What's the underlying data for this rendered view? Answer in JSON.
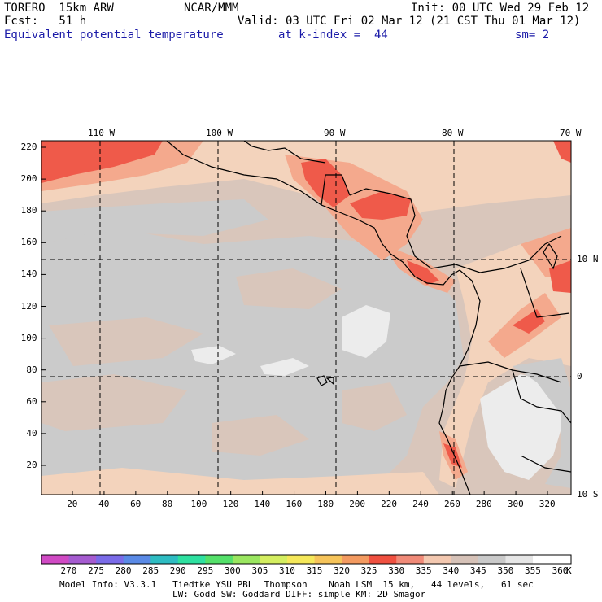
{
  "header": {
    "model": "TORERO  15km ARW",
    "org": "NCAR/MMM",
    "init": "Init: 00 UTC Wed 29 Feb 12",
    "fcst": "Fcst:   51 h",
    "valid": "Valid: 03 UTC Fri 02 Mar 12 (21 CST Thu 01 Mar 12)",
    "field": "Equivalent potential temperature",
    "level": "at k-index =  44",
    "smooth": "sm= 2"
  },
  "map": {
    "lon_labels": [
      "110 W",
      "100 W",
      "90 W",
      "80 W",
      "70 W"
    ],
    "lat_labels": [
      "10 N",
      "0",
      "10 S"
    ],
    "x_ticks": [
      "20",
      "40",
      "60",
      "80",
      "100",
      "120",
      "140",
      "160",
      "180",
      "200",
      "220",
      "240",
      "260",
      "280",
      "300",
      "320"
    ],
    "y_ticks": [
      "20",
      "40",
      "60",
      "80",
      "100",
      "120",
      "140",
      "160",
      "180",
      "200",
      "220"
    ],
    "colors": {
      "c340": "#f3d3bc",
      "c345": "#d9c6bb",
      "c350": "#cbcbcb",
      "c355": "#ececec",
      "c335": "#f4a98d",
      "c330": "#ef5a4a"
    }
  },
  "colorbar": {
    "values": [
      "270",
      "275",
      "280",
      "285",
      "290",
      "295",
      "300",
      "305",
      "310",
      "315",
      "320",
      "325",
      "330",
      "335",
      "340",
      "345",
      "350",
      "355",
      "360"
    ],
    "unit": "K",
    "colors": [
      "#d04ac4",
      "#a55bd0",
      "#7a6be8",
      "#5a8ae6",
      "#2ebcc2",
      "#2ee0a0",
      "#54e06a",
      "#9ae660",
      "#d4ee60",
      "#f5e85a",
      "#f6c45a",
      "#f39a60",
      "#ef5040",
      "#f08a78",
      "#f3c8b0",
      "#d6c2b8",
      "#cacaca",
      "#e6e6e6",
      "#ffffff"
    ]
  },
  "footer": {
    "line1": "Model Info: V3.3.1   Tiedtke YSU PBL  Thompson    Noah LSM  15 km,   44 levels,   61 sec",
    "line2": "LW: Godd SW: Goddard DIFF: simple KM: 2D Smagor"
  }
}
